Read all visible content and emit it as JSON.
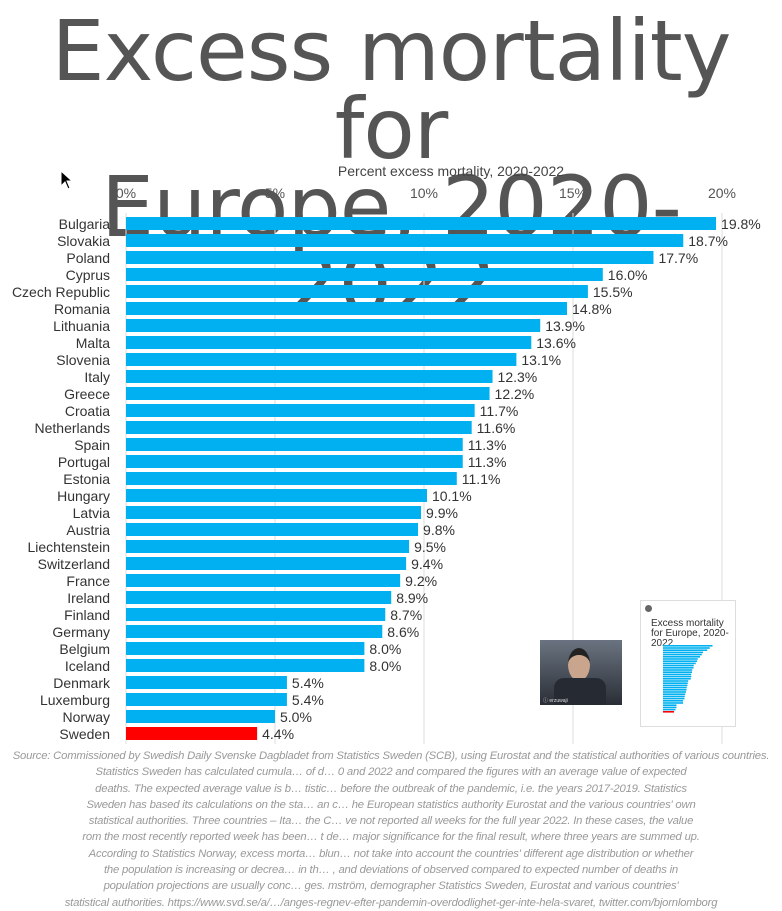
{
  "chart_data": {
    "type": "bar",
    "orientation": "horizontal",
    "title": "Excess mortality for Europe, 2020-2022",
    "subtitle": "Percent excess mortality, 2020-2022",
    "xlim": [
      0,
      20
    ],
    "ticks": [
      "0%",
      "5%",
      "10%",
      "15%",
      "20%"
    ],
    "tick_values": [
      0,
      5,
      10,
      15,
      20
    ],
    "grid": true,
    "categories": [
      "Bulgaria",
      "Slovakia",
      "Poland",
      "Cyprus",
      "Czech Republic",
      "Romania",
      "Lithuania",
      "Malta",
      "Slovenia",
      "Italy",
      "Greece",
      "Croatia",
      "Netherlands",
      "Spain",
      "Portugal",
      "Estonia",
      "Hungary",
      "Latvia",
      "Austria",
      "Liechtenstein",
      "Switzerland",
      "France",
      "Ireland",
      "Finland",
      "Germany",
      "Belgium",
      "Iceland",
      "Denmark",
      "Luxemburg",
      "Norway",
      "Sweden"
    ],
    "values": [
      19.8,
      18.7,
      17.7,
      16.0,
      15.5,
      14.8,
      13.9,
      13.6,
      13.1,
      12.3,
      12.2,
      11.7,
      11.6,
      11.3,
      11.3,
      11.1,
      10.1,
      9.9,
      9.8,
      9.5,
      9.4,
      9.2,
      8.9,
      8.7,
      8.6,
      8.0,
      8.0,
      5.4,
      5.4,
      5.0,
      4.4
    ],
    "labels": [
      "19.8%",
      "18.7%",
      "17.7%",
      "16.0%",
      "15.5%",
      "14.8%",
      "13.9%",
      "13.6%",
      "13.1%",
      "12.3%",
      "12.2%",
      "11.7%",
      "11.6%",
      "11.3%",
      "11.3%",
      "11.1%",
      "10.1%",
      "9.9%",
      "9.8%",
      "9.5%",
      "9.4%",
      "9.2%",
      "8.9%",
      "8.7%",
      "8.6%",
      "8.0%",
      "8.0%",
      "5.4%",
      "5.4%",
      "5.0%",
      "4.4%"
    ],
    "colors": {
      "default": "#00b0f0",
      "highlight": "#ff0000",
      "highlight_category": "Sweden"
    }
  },
  "title_lines": [
    "Excess mortality for",
    "Europe, 2020-2022"
  ],
  "source_lines": [
    "Source: Commissioned by Swedish Daily Svenske Dagbladet from Statistics Sweden (SCB), using Eurostat and the statistical authorities of various countries.",
    "Statistics Sweden has calculated cumula…                    of d…                    0 and 2022 and compared the figures with an average value of expected",
    "deaths. The expected average value is b…                     tistic…                    before the outbreak of the pandemic, i.e. the years 2017-2019. Statistics",
    "Sweden has based its calculations on the sta…                  an c…                  he European statistics authority Eurostat and the various countries' own",
    "statistical authorities. Three countries – Ita…                      the C…                  ve not reported all weeks for the full year 2022. In these cases, the value",
    "rom the most recently reported week has been…                    t de…                  major significance for the final result, where three years are summed up.",
    "According to Statistics Norway, excess morta…                 blun…                  not take into account the countries' different age distribution or whether",
    "the population is increasing or decrea…                  in th…                  , and deviations of observed compared to expected number of deaths in",
    "population projections are usually conc…                  ges.                  mström, demographer Statistics Sweden, Eurostat and various countries'",
    "statistical authorities. https://www.svd.se/a/…/anges-regnev-efter-pandemin-overdodlighet-ger-inte-hela-svaret, twitter.com/bjornlomborg"
  ],
  "overlay": {
    "tweet_title": "Excess mortality for Europe, 2020-2022",
    "video_caption": "ⓘ erzuwaji"
  }
}
